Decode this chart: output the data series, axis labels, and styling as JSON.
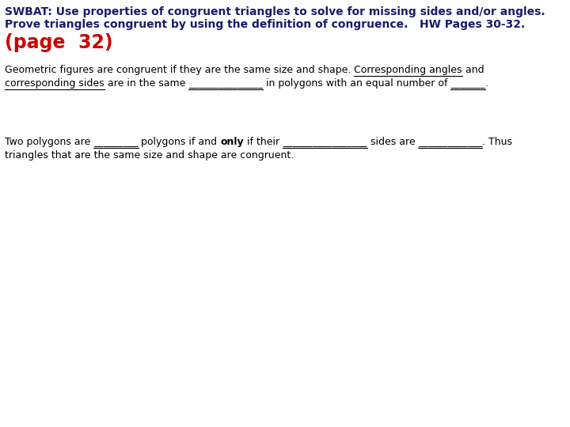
{
  "bg_color": "#ffffff",
  "header_color": "#1a1a6e",
  "page_color": "#cc0000",
  "header_font": "Comic Sans MS",
  "body_font": "Arial",
  "header_line1": "SWBAT: Use properties of congruent triangles to solve for missing sides and/or angles.",
  "header_line2": "Prove triangles congruent by using the definition of congruence.   HW Pages 30-32.",
  "page_label": "(page  32)",
  "body_fontsize": 9.0,
  "header_fontsize": 10.0,
  "page_fontsize": 17.0
}
